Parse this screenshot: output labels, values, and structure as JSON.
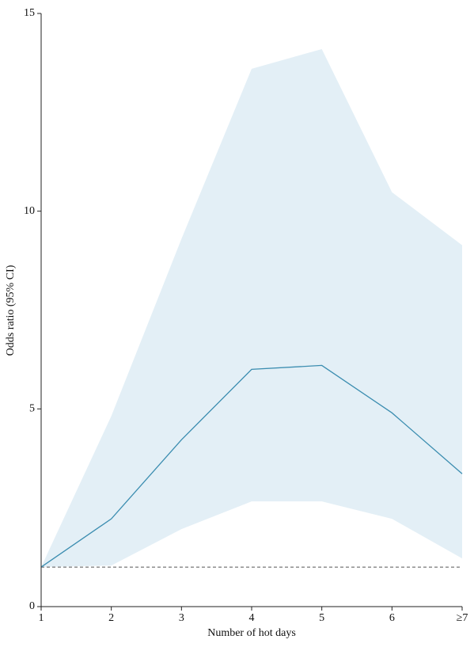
{
  "chart_data": {
    "type": "line",
    "x_label": "Number of hot days",
    "y_label": "Odds ratio (95% CI)",
    "categories": [
      "1",
      "2",
      "3",
      "4",
      "5",
      "6",
      "≥7"
    ],
    "values": [
      1.0,
      2.22,
      4.22,
      6.0,
      6.1,
      4.9,
      3.36
    ],
    "lower": [
      1.0,
      1.04,
      1.96,
      2.66,
      2.66,
      2.22,
      1.22
    ],
    "upper": [
      1.0,
      4.82,
      9.3,
      13.6,
      14.1,
      10.48,
      9.14
    ],
    "color": "#3b8db0",
    "band_color": "#e3eff6",
    "reference_line": 1,
    "ylim": [
      0,
      15
    ],
    "yticks": [
      0,
      5,
      10,
      15
    ]
  }
}
